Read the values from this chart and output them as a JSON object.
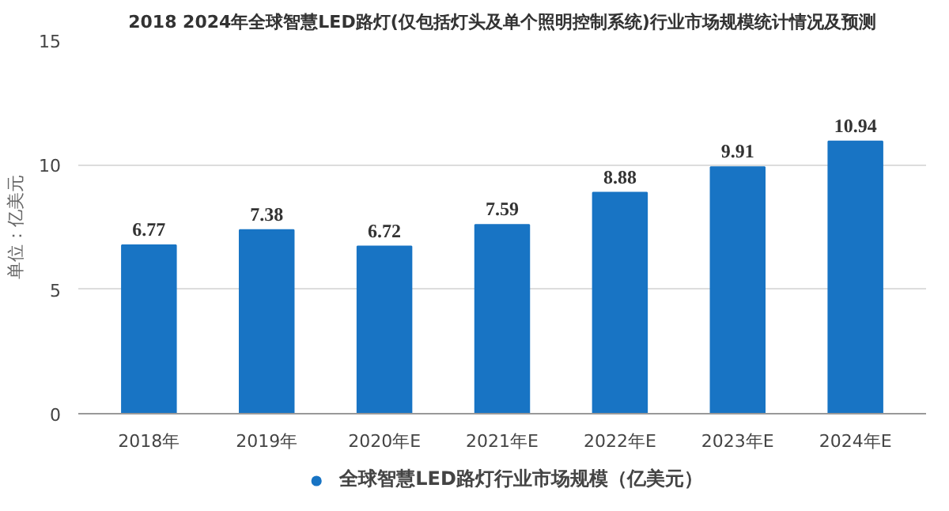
{
  "chart_data": {
    "type": "bar",
    "title": "2018 2024年全球智慧LED路灯(仅包括灯头及单个照明控制系统)行业市场规模统计情况及预测",
    "ylabel": "单位：亿美元",
    "categories": [
      "2018年",
      "2019年",
      "2020年E",
      "2021年E",
      "2022年E",
      "2023年E",
      "2024年E"
    ],
    "series": [
      {
        "name": "全球智慧LED路灯行业市场规模（亿美元）",
        "color": "#1874c4",
        "values": [
          6.77,
          7.38,
          6.72,
          7.59,
          8.88,
          9.91,
          10.94
        ]
      }
    ],
    "ylim": [
      0,
      15
    ],
    "yticks": [
      0,
      5,
      10,
      15
    ],
    "grid": "y",
    "legend": "bottom",
    "data_labels": true
  }
}
